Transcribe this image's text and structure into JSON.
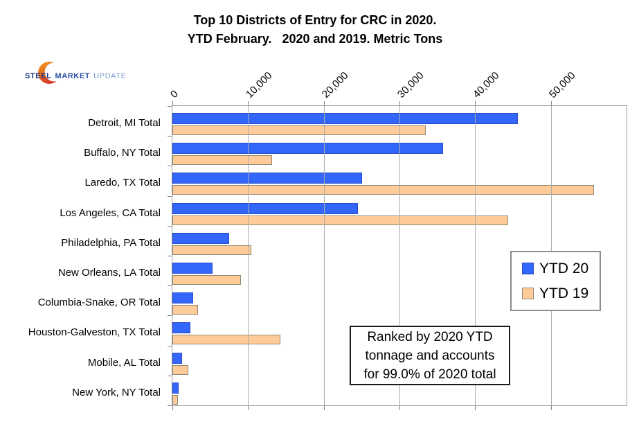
{
  "title": {
    "line1": "Top 10 Districts of Entry for CRC in 2020.",
    "line2": "YTD February.   2020 and 2019. Metric Tons"
  },
  "logo": {
    "word1": "STEEL",
    "word2": "MARKET",
    "word3": "UPDATE",
    "crescent_color_top": "#F6A01F",
    "crescent_color_bottom": "#D63A28"
  },
  "legend": {
    "items": [
      {
        "label": "YTD 20",
        "color": "#3366FA",
        "border": "#2B4ACB"
      },
      {
        "label": "YTD 19",
        "color": "#FFCC99",
        "border": "#8F8772"
      }
    ]
  },
  "annotation": {
    "text": "Ranked by 2020 YTD\ntonnage and accounts\nfor 99.0% of 2020 total"
  },
  "chart_data": {
    "type": "bar",
    "orientation": "horizontal",
    "title": "Top 10 Districts of Entry for CRC in 2020. YTD February. 2020 and 2019. Metric Tons",
    "units": "Metric Tons",
    "categories": [
      "Detroit, MI Total",
      "Buffalo, NY Total",
      "Laredo, TX Total",
      "Los Angeles, CA Total",
      "Philadelphia, PA Total",
      "New Orleans, LA Total",
      "Columbia-Snake, OR Total",
      "Houston-Galveston, TX Total",
      "Mobile, AL Total",
      "New York, NY Total"
    ],
    "series": [
      {
        "name": "YTD 20",
        "color": "#3366FA",
        "border": "#2B4ACB",
        "values": [
          45600,
          35800,
          25100,
          24500,
          7500,
          5300,
          2700,
          2400,
          1300,
          800
        ]
      },
      {
        "name": "YTD 19",
        "color": "#FFCC99",
        "border": "#8F8772",
        "values": [
          33500,
          13200,
          55700,
          44400,
          10400,
          9100,
          3400,
          14300,
          2100,
          700
        ]
      }
    ],
    "xlim": [
      0,
      60000
    ],
    "xticks": [
      0,
      10000,
      20000,
      30000,
      40000,
      50000
    ],
    "xtick_labels": [
      "0",
      "10,000",
      "20,000",
      "30,000",
      "40,000",
      "50,000"
    ],
    "grid": true,
    "legend_position": "middle-right"
  },
  "colors": {
    "grid": "#ABABAB",
    "frame": "#9B9B9B",
    "tick": "#808080",
    "background": "#FFFFFF"
  }
}
